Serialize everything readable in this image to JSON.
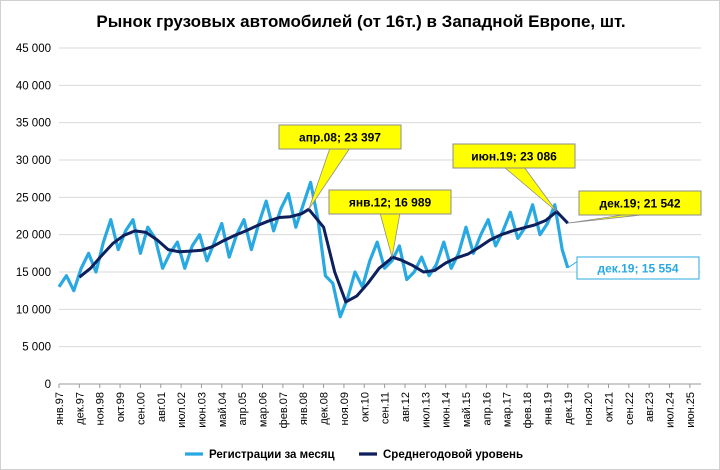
{
  "chart_data": {
    "type": "line",
    "title": "Рынок грузовых автомобилей (от 16т.) в Западной Европе, шт.",
    "ylim": [
      0,
      45000
    ],
    "yticks": [
      0,
      5000,
      10000,
      15000,
      20000,
      25000,
      30000,
      35000,
      40000,
      45000
    ],
    "ytick_labels": [
      "0",
      "5 000",
      "10 000",
      "15 000",
      "20 000",
      "25 000",
      "30 000",
      "35 000",
      "40 000",
      "45 000"
    ],
    "xlim": [
      "янв.97",
      "дек.25"
    ],
    "xtick_labels": [
      "янв.97",
      "дек.97",
      "ноя.98",
      "окт.99",
      "сен.00",
      "авг.01",
      "июл.02",
      "июн.03",
      "май.04",
      "апр.05",
      "мар.06",
      "фев.07",
      "янв.08",
      "дек.08",
      "ноя.09",
      "окт.10",
      "сен.11",
      "авг.12",
      "июл.13",
      "июн.14",
      "май.15",
      "апр.16",
      "мар.17",
      "фев.18",
      "янв.19",
      "дек.19",
      "ноя.20",
      "окт.21",
      "сен.22",
      "авг.23",
      "июл.24",
      "июн.25"
    ],
    "grid": true,
    "legend_position": "bottom",
    "series": [
      {
        "name": "Регистрации за месяц",
        "color": "#29a9e1",
        "x": [
          "янв.97",
          "май.97",
          "сен.97",
          "янв.98",
          "май.98",
          "сен.98",
          "янв.99",
          "май.99",
          "сен.99",
          "янв.00",
          "май.00",
          "сен.00",
          "янв.01",
          "май.01",
          "сен.01",
          "янв.02",
          "май.02",
          "сен.02",
          "янв.03",
          "май.03",
          "сен.03",
          "янв.04",
          "май.04",
          "сен.04",
          "янв.05",
          "май.05",
          "сен.05",
          "янв.06",
          "май.06",
          "сен.06",
          "янв.07",
          "май.07",
          "сен.07",
          "янв.08",
          "май.08",
          "сен.08",
          "янв.09",
          "май.09",
          "сен.09",
          "янв.10",
          "май.10",
          "сен.10",
          "янв.11",
          "май.11",
          "сен.11",
          "янв.12",
          "май.12",
          "сен.12",
          "янв.13",
          "май.13",
          "сен.13",
          "янв.14",
          "май.14",
          "сен.14",
          "янв.15",
          "май.15",
          "сен.15",
          "янв.16",
          "май.16",
          "сен.16",
          "янв.17",
          "май.17",
          "сен.17",
          "янв.18",
          "май.18",
          "сен.18",
          "янв.19",
          "май.19",
          "сен.19",
          "дек.19"
        ],
        "values": [
          13000,
          14500,
          12500,
          15500,
          17500,
          15000,
          19000,
          22000,
          18000,
          20500,
          22000,
          17500,
          21000,
          19500,
          15500,
          17500,
          19000,
          15500,
          18500,
          20000,
          16500,
          19000,
          21500,
          17000,
          20000,
          22000,
          18000,
          21500,
          24500,
          20500,
          23500,
          25500,
          21000,
          24000,
          27000,
          22000,
          14500,
          13500,
          9000,
          11500,
          15000,
          13000,
          16500,
          19000,
          15500,
          16500,
          18500,
          14000,
          15000,
          17000,
          14500,
          16000,
          19000,
          15500,
          17500,
          21000,
          17500,
          20000,
          22000,
          18500,
          20500,
          23000,
          19500,
          21000,
          24000,
          20000,
          21500,
          24000,
          18000,
          15554
        ]
      },
      {
        "name": "Среднегодовой уровень",
        "color": "#0d1f5c",
        "x": [
          "дек.97",
          "июн.98",
          "дек.98",
          "июн.99",
          "дек.99",
          "июн.00",
          "дек.00",
          "июн.01",
          "дек.01",
          "июн.02",
          "дек.02",
          "июн.03",
          "дек.03",
          "июн.04",
          "дек.04",
          "июн.05",
          "дек.05",
          "июн.06",
          "дек.06",
          "июн.07",
          "дек.07",
          "апр.08",
          "дек.08",
          "июн.09",
          "дек.09",
          "июн.10",
          "дек.10",
          "июн.11",
          "дек.11",
          "янв.12",
          "июн.12",
          "дек.12",
          "июн.13",
          "дек.13",
          "июн.14",
          "дек.14",
          "июн.15",
          "дек.15",
          "июн.16",
          "дек.16",
          "июн.17",
          "дек.17",
          "июн.18",
          "дек.18",
          "июн.19",
          "дек.19"
        ],
        "values": [
          14300,
          15500,
          17200,
          18800,
          19900,
          20500,
          20300,
          19300,
          18000,
          17700,
          17800,
          17900,
          18400,
          19200,
          19900,
          20500,
          21200,
          21800,
          22300,
          22400,
          22800,
          23397,
          21000,
          15000,
          11000,
          11800,
          13500,
          15500,
          16700,
          16989,
          16600,
          15900,
          15000,
          15200,
          16200,
          16900,
          17400,
          18300,
          19300,
          20000,
          20500,
          20900,
          21300,
          21900,
          23086,
          21542
        ]
      }
    ],
    "annotations": [
      {
        "label": "апр.08;  23 397",
        "x": "апр.08",
        "y": 23397
      },
      {
        "label": "янв.12;  16 989",
        "x": "янв.12",
        "y": 16989
      },
      {
        "label": "июн.19;  23 086",
        "x": "июн.19",
        "y": 23086
      },
      {
        "label": "дек.19;  21 542",
        "x": "дек.19",
        "y": 21542
      },
      {
        "label": "дек.19; 15 554",
        "x": "дек.19",
        "y": 15554
      }
    ]
  }
}
